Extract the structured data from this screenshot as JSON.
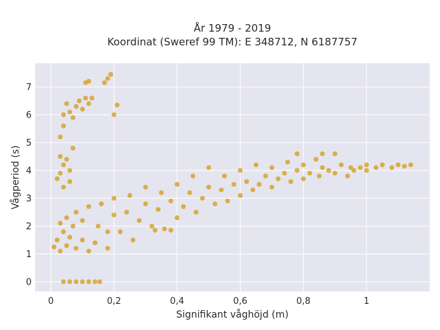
{
  "chart_data": {
    "type": "scatter",
    "title_line1": "År 1979 - 2019",
    "title_line2": "Koordinat (Sweref 99 TM): E 348712, N 6187757",
    "xlabel": "Signifikant våghöjd (m)",
    "ylabel": "Vågperiod (s)",
    "xlim": [
      -0.05,
      1.2
    ],
    "ylim": [
      -0.35,
      7.85
    ],
    "x_ticks": [
      0,
      0.2,
      0.4,
      0.6,
      0.8,
      1
    ],
    "x_tick_labels": [
      "0",
      "0,2",
      "0,4",
      "0,6",
      "0,8",
      "1"
    ],
    "y_ticks": [
      0,
      1,
      2,
      3,
      4,
      5,
      6,
      7
    ],
    "y_tick_labels": [
      "0",
      "1",
      "2",
      "3",
      "4",
      "5",
      "6",
      "7"
    ],
    "grid": true,
    "colors": {
      "marker": "#d4a020",
      "plot_bg": "#e5e5ef",
      "grid": "#ffffff"
    },
    "series": [
      {
        "values": [
          [
            0.04,
            0
          ],
          [
            0.06,
            0
          ],
          [
            0.08,
            0
          ],
          [
            0.1,
            0
          ],
          [
            0.12,
            0
          ],
          [
            0.14,
            0
          ],
          [
            0.155,
            0
          ],
          [
            0.01,
            1.25
          ],
          [
            0.02,
            1.5
          ],
          [
            0.03,
            1.1
          ],
          [
            0.03,
            2.1
          ],
          [
            0.04,
            1.8
          ],
          [
            0.05,
            1.3
          ],
          [
            0.05,
            2.3
          ],
          [
            0.06,
            1.6
          ],
          [
            0.07,
            2.0
          ],
          [
            0.08,
            1.2
          ],
          [
            0.08,
            2.5
          ],
          [
            0.1,
            1.5
          ],
          [
            0.1,
            2.2
          ],
          [
            0.12,
            1.1
          ],
          [
            0.12,
            2.7
          ],
          [
            0.14,
            1.4
          ],
          [
            0.15,
            2.0
          ],
          [
            0.16,
            2.8
          ],
          [
            0.18,
            1.2
          ],
          [
            0.18,
            1.8
          ],
          [
            0.2,
            2.4
          ],
          [
            0.2,
            3.0
          ],
          [
            0.03,
            5.2
          ],
          [
            0.04,
            5.6
          ],
          [
            0.04,
            6.0
          ],
          [
            0.05,
            6.4
          ],
          [
            0.06,
            6.1
          ],
          [
            0.07,
            5.9
          ],
          [
            0.08,
            6.3
          ],
          [
            0.09,
            6.5
          ],
          [
            0.1,
            6.2
          ],
          [
            0.11,
            6.6
          ],
          [
            0.12,
            6.4
          ],
          [
            0.13,
            6.6
          ],
          [
            0.02,
            3.7
          ],
          [
            0.03,
            3.9
          ],
          [
            0.04,
            4.2
          ],
          [
            0.05,
            4.4
          ],
          [
            0.06,
            4.0
          ],
          [
            0.03,
            4.5
          ],
          [
            0.07,
            4.8
          ],
          [
            0.04,
            3.4
          ],
          [
            0.06,
            3.6
          ],
          [
            0.11,
            7.15
          ],
          [
            0.12,
            7.2
          ],
          [
            0.17,
            7.15
          ],
          [
            0.18,
            7.3
          ],
          [
            0.19,
            7.45
          ],
          [
            0.2,
            6.0
          ],
          [
            0.21,
            6.35
          ],
          [
            0.22,
            1.8
          ],
          [
            0.24,
            2.5
          ],
          [
            0.25,
            3.1
          ],
          [
            0.26,
            1.5
          ],
          [
            0.28,
            2.2
          ],
          [
            0.3,
            2.8
          ],
          [
            0.3,
            3.4
          ],
          [
            0.32,
            2.0
          ],
          [
            0.34,
            2.6
          ],
          [
            0.35,
            3.2
          ],
          [
            0.36,
            1.9
          ],
          [
            0.38,
            2.9
          ],
          [
            0.4,
            3.5
          ],
          [
            0.4,
            2.3
          ],
          [
            0.42,
            2.7
          ],
          [
            0.44,
            3.2
          ],
          [
            0.45,
            3.8
          ],
          [
            0.46,
            2.5
          ],
          [
            0.48,
            3.0
          ],
          [
            0.5,
            3.4
          ],
          [
            0.5,
            4.1
          ],
          [
            0.52,
            2.8
          ],
          [
            0.54,
            3.3
          ],
          [
            0.55,
            3.8
          ],
          [
            0.56,
            2.9
          ],
          [
            0.58,
            3.5
          ],
          [
            0.6,
            3.1
          ],
          [
            0.6,
            4.0
          ],
          [
            0.62,
            3.6
          ],
          [
            0.64,
            3.3
          ],
          [
            0.65,
            4.2
          ],
          [
            0.66,
            3.5
          ],
          [
            0.68,
            3.8
          ],
          [
            0.7,
            3.4
          ],
          [
            0.7,
            4.1
          ],
          [
            0.72,
            3.7
          ],
          [
            0.74,
            3.9
          ],
          [
            0.75,
            4.3
          ],
          [
            0.76,
            3.6
          ],
          [
            0.78,
            4.0
          ],
          [
            0.8,
            3.7
          ],
          [
            0.8,
            4.2
          ],
          [
            0.82,
            3.9
          ],
          [
            0.84,
            4.4
          ],
          [
            0.85,
            3.8
          ],
          [
            0.86,
            4.1
          ],
          [
            0.88,
            4.0
          ],
          [
            0.9,
            4.6
          ],
          [
            0.9,
            3.9
          ],
          [
            0.92,
            4.2
          ],
          [
            0.94,
            3.8
          ],
          [
            0.95,
            4.1
          ],
          [
            0.96,
            4.0
          ],
          [
            0.98,
            4.1
          ],
          [
            1.0,
            4.0
          ],
          [
            1.0,
            4.2
          ],
          [
            1.03,
            4.1
          ],
          [
            1.05,
            4.2
          ],
          [
            1.08,
            4.1
          ],
          [
            1.1,
            4.2
          ],
          [
            1.12,
            4.15
          ],
          [
            1.14,
            4.2
          ],
          [
            0.78,
            4.6
          ],
          [
            0.86,
            4.6
          ],
          [
            0.33,
            1.85
          ],
          [
            0.38,
            1.85
          ]
        ]
      }
    ]
  }
}
